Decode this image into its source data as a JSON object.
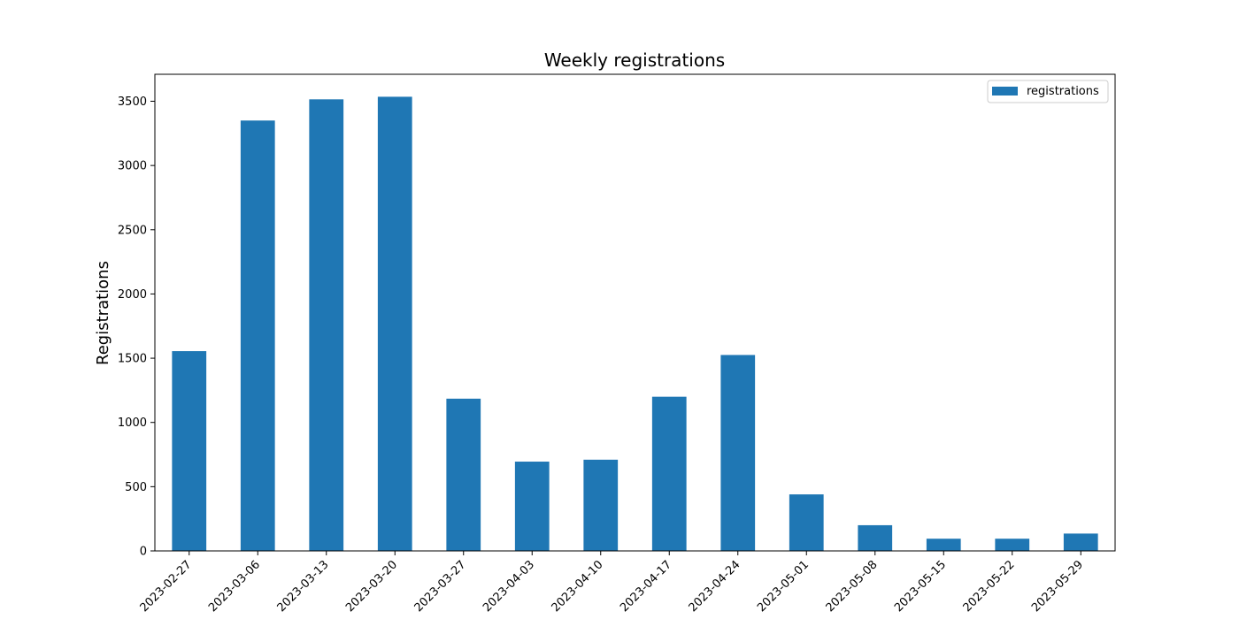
{
  "chart_data": {
    "type": "bar",
    "title": "Weekly registrations",
    "xlabel": "",
    "ylabel": "Registrations",
    "categories": [
      "2023-02-27",
      "2023-03-06",
      "2023-03-13",
      "2023-03-20",
      "2023-03-27",
      "2023-04-03",
      "2023-04-10",
      "2023-04-17",
      "2023-04-24",
      "2023-05-01",
      "2023-05-08",
      "2023-05-15",
      "2023-05-22",
      "2023-05-29"
    ],
    "series": [
      {
        "name": "registrations",
        "color": "#1f77b4",
        "values": [
          1555,
          3350,
          3515,
          3535,
          1185,
          695,
          710,
          1200,
          1525,
          440,
          200,
          95,
          95,
          135
        ]
      }
    ],
    "yticks": [
      0,
      500,
      1000,
      1500,
      2000,
      2500,
      3000,
      3500
    ],
    "ylim": [
      0,
      3710
    ],
    "grid": false,
    "legend": "top-right"
  }
}
